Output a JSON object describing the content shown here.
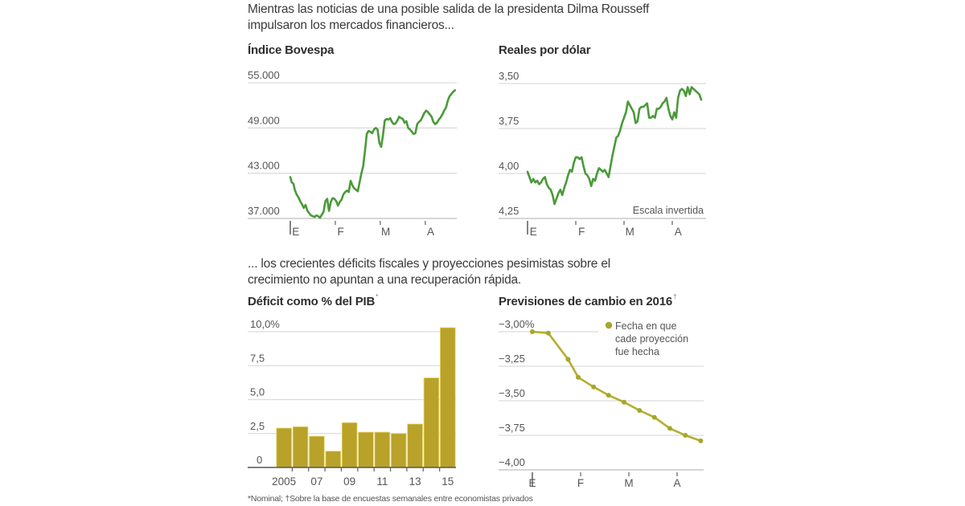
{
  "intro_top": {
    "line1": "Mientras las noticias de una posible salida de la presidenta Dilma Rousseff",
    "line2": "impulsaron los mercados financieros..."
  },
  "intro_bottom": {
    "line1": "... los crecientes déficits fiscales y proyecciones pesimistas sobre el",
    "line2": "crecimiento no apuntan a una recuperación rápida."
  },
  "footnote": "*Nominal; †Sobre la base de encuestas semanales entre economistas privados",
  "colors": {
    "market_line": "#4a9a3a",
    "gold": "#b8a22a",
    "gold_line": "#b5ad2c",
    "gold_dot": "#a6a62a"
  },
  "chart_data": [
    {
      "id": "bovespa",
      "type": "line",
      "title": "Índice Bovespa",
      "title_mark": "",
      "xlabel": "",
      "ylabel": "",
      "ylim": [
        37000,
        55000
      ],
      "yticks": [
        55000,
        49000,
        43000,
        37000
      ],
      "ytick_labels": [
        "55.000",
        "49.000",
        "43.000",
        "37.000"
      ],
      "x_range_months": [
        0,
        3.7
      ],
      "x_ticks": [
        0,
        1,
        2,
        3
      ],
      "x_labels": [
        "E",
        "F",
        "M",
        "A"
      ],
      "grid": true,
      "series": [
        {
          "name": "Índice Bovespa",
          "x": [
            0.0,
            0.03,
            0.07,
            0.1,
            0.14,
            0.18,
            0.22,
            0.26,
            0.3,
            0.34,
            0.38,
            0.42,
            0.46,
            0.5,
            0.54,
            0.58,
            0.62,
            0.66,
            0.7,
            0.74,
            0.78,
            0.82,
            0.86,
            0.9,
            0.94,
            0.98,
            1.02,
            1.06,
            1.1,
            1.14,
            1.18,
            1.22,
            1.26,
            1.3,
            1.34,
            1.38,
            1.42,
            1.46,
            1.5,
            1.54,
            1.58,
            1.62,
            1.66,
            1.7,
            1.74,
            1.78,
            1.82,
            1.86,
            1.9,
            1.94,
            1.98,
            2.02,
            2.06,
            2.1,
            2.14,
            2.18,
            2.22,
            2.26,
            2.3,
            2.34,
            2.38,
            2.42,
            2.46,
            2.5,
            2.54,
            2.58,
            2.62,
            2.66,
            2.7,
            2.74,
            2.78,
            2.82,
            2.86,
            2.9,
            2.94,
            2.98,
            3.02,
            3.06,
            3.1,
            3.14,
            3.18,
            3.22,
            3.26,
            3.3,
            3.34,
            3.38,
            3.42,
            3.46,
            3.5,
            3.54,
            3.58,
            3.62,
            3.66
          ],
          "values": [
            42500,
            41800,
            41600,
            40800,
            40200,
            39800,
            39300,
            38900,
            38400,
            38800,
            38000,
            37700,
            37400,
            37300,
            37200,
            37400,
            37300,
            37100,
            37500,
            37900,
            39300,
            39600,
            38000,
            39200,
            39700,
            39600,
            39300,
            38700,
            39200,
            39500,
            40200,
            40500,
            40700,
            40500,
            42000,
            41400,
            41000,
            40800,
            40600,
            41800,
            43000,
            43900,
            46000,
            48200,
            48600,
            48500,
            48300,
            48800,
            49000,
            48800,
            47000,
            46500,
            48000,
            50000,
            50200,
            50100,
            50300,
            49800,
            49500,
            49600,
            50000,
            50500,
            50300,
            50200,
            49700,
            49900,
            49000,
            48800,
            48500,
            48200,
            48300,
            49500,
            49800,
            50000,
            50500,
            51000,
            51300,
            51100,
            50800,
            50500,
            49800,
            49500,
            49700,
            50100,
            50400,
            50800,
            51300,
            51700,
            52600,
            53200,
            53500,
            53800,
            54000
          ]
        }
      ]
    },
    {
      "id": "reales",
      "type": "line",
      "title": "Reales por dólar",
      "title_mark": "",
      "xlabel": "",
      "ylabel": "",
      "inverted": true,
      "annotation": "Escala invertida",
      "ylim": [
        4.25,
        3.5
      ],
      "yticks": [
        3.5,
        3.75,
        4.0,
        4.25
      ],
      "ytick_labels": [
        "3,50",
        "3,75",
        "4,00",
        "4,25"
      ],
      "x_range_months": [
        0,
        3.7
      ],
      "x_ticks": [
        0,
        1,
        2,
        3
      ],
      "x_labels": [
        "E",
        "F",
        "M",
        "A"
      ],
      "grid": true,
      "series": [
        {
          "name": "Reales por dólar",
          "x": [
            0.0,
            0.04,
            0.08,
            0.12,
            0.16,
            0.2,
            0.24,
            0.28,
            0.32,
            0.36,
            0.4,
            0.44,
            0.48,
            0.52,
            0.56,
            0.6,
            0.64,
            0.68,
            0.72,
            0.76,
            0.8,
            0.84,
            0.88,
            0.92,
            0.96,
            1.0,
            1.04,
            1.08,
            1.12,
            1.16,
            1.2,
            1.24,
            1.28,
            1.32,
            1.36,
            1.4,
            1.44,
            1.48,
            1.52,
            1.56,
            1.6,
            1.64,
            1.68,
            1.72,
            1.76,
            1.8,
            1.84,
            1.88,
            1.92,
            1.96,
            2.0,
            2.04,
            2.08,
            2.12,
            2.16,
            2.2,
            2.24,
            2.28,
            2.32,
            2.36,
            2.4,
            2.44,
            2.48,
            2.52,
            2.56,
            2.6,
            2.64,
            2.68,
            2.72,
            2.76,
            2.8,
            2.84,
            2.88,
            2.92,
            2.96,
            3.0,
            3.04,
            3.08,
            3.12,
            3.16,
            3.2,
            3.24,
            3.28,
            3.32,
            3.36,
            3.4,
            3.44,
            3.48,
            3.52,
            3.56,
            3.6
          ],
          "values": [
            3.99,
            4.02,
            4.05,
            4.03,
            4.05,
            4.04,
            4.06,
            4.05,
            4.03,
            4.02,
            4.06,
            4.08,
            4.09,
            4.12,
            4.17,
            4.14,
            4.11,
            4.09,
            4.12,
            4.08,
            4.05,
            4.01,
            3.98,
            3.99,
            3.94,
            3.91,
            3.91,
            3.92,
            3.91,
            3.96,
            4.0,
            4.01,
            4.03,
            4.07,
            4.03,
            4.04,
            4.0,
            3.97,
            3.98,
            3.99,
            3.98,
            4.0,
            4.02,
            3.96,
            3.9,
            3.85,
            3.8,
            3.79,
            3.76,
            3.72,
            3.69,
            3.66,
            3.6,
            3.62,
            3.64,
            3.66,
            3.72,
            3.71,
            3.64,
            3.63,
            3.63,
            3.62,
            3.61,
            3.69,
            3.69,
            3.68,
            3.69,
            3.64,
            3.64,
            3.63,
            3.61,
            3.6,
            3.58,
            3.64,
            3.68,
            3.7,
            3.66,
            3.69,
            3.58,
            3.54,
            3.53,
            3.54,
            3.57,
            3.52,
            3.56,
            3.52,
            3.53,
            3.54,
            3.55,
            3.56,
            3.59
          ]
        }
      ]
    },
    {
      "id": "deficit",
      "type": "bar",
      "title": "Déficit como % del PIB",
      "title_mark": "*",
      "xlabel": "",
      "ylabel": "",
      "ylim": [
        0,
        10
      ],
      "yticks": [
        10,
        7.5,
        5,
        2.5,
        0
      ],
      "ytick_labels": [
        "10,0%",
        "7,5",
        "5,0",
        "2,5",
        "0"
      ],
      "categories": [
        "2005",
        "2006",
        "2007",
        "2008",
        "2009",
        "2010",
        "2011",
        "2012",
        "2013",
        "2014",
        "2015"
      ],
      "x_labels": [
        "2005",
        "",
        "07",
        "",
        "09",
        "",
        "11",
        "",
        "13",
        "",
        "15"
      ],
      "values": [
        2.9,
        3.0,
        2.3,
        1.2,
        3.3,
        2.6,
        2.6,
        2.5,
        3.2,
        6.6,
        10.3
      ],
      "grid": true
    },
    {
      "id": "forecast",
      "type": "line",
      "title": "Previsiones de cambio en 2016",
      "title_mark": "†",
      "xlabel": "",
      "ylabel": "",
      "ylim": [
        -4.0,
        -3.0
      ],
      "yticks": [
        -3.0,
        -3.25,
        -3.5,
        -3.75,
        -4.0
      ],
      "ytick_labels": [
        "−3,00%",
        "−3,25",
        "−3,50",
        "−3,75",
        "−4,00"
      ],
      "x_range_months": [
        0,
        3.55
      ],
      "x_ticks": [
        0,
        1,
        2,
        3
      ],
      "x_labels": [
        "E",
        "F",
        "M",
        "A"
      ],
      "legend": {
        "label_lines": [
          "Fecha en que",
          "cade proyección",
          "fue hecha"
        ],
        "position": "top-right"
      },
      "grid": true,
      "series": [
        {
          "name": "Fecha en que cade proyección fue hecha",
          "x": [
            0.0,
            0.33,
            0.74,
            0.95,
            1.27,
            1.58,
            1.9,
            2.22,
            2.53,
            2.85,
            3.17,
            3.49
          ],
          "values": [
            -3.0,
            -3.01,
            -3.2,
            -3.33,
            -3.4,
            -3.46,
            -3.51,
            -3.57,
            -3.62,
            -3.7,
            -3.75,
            -3.79
          ]
        }
      ]
    }
  ]
}
